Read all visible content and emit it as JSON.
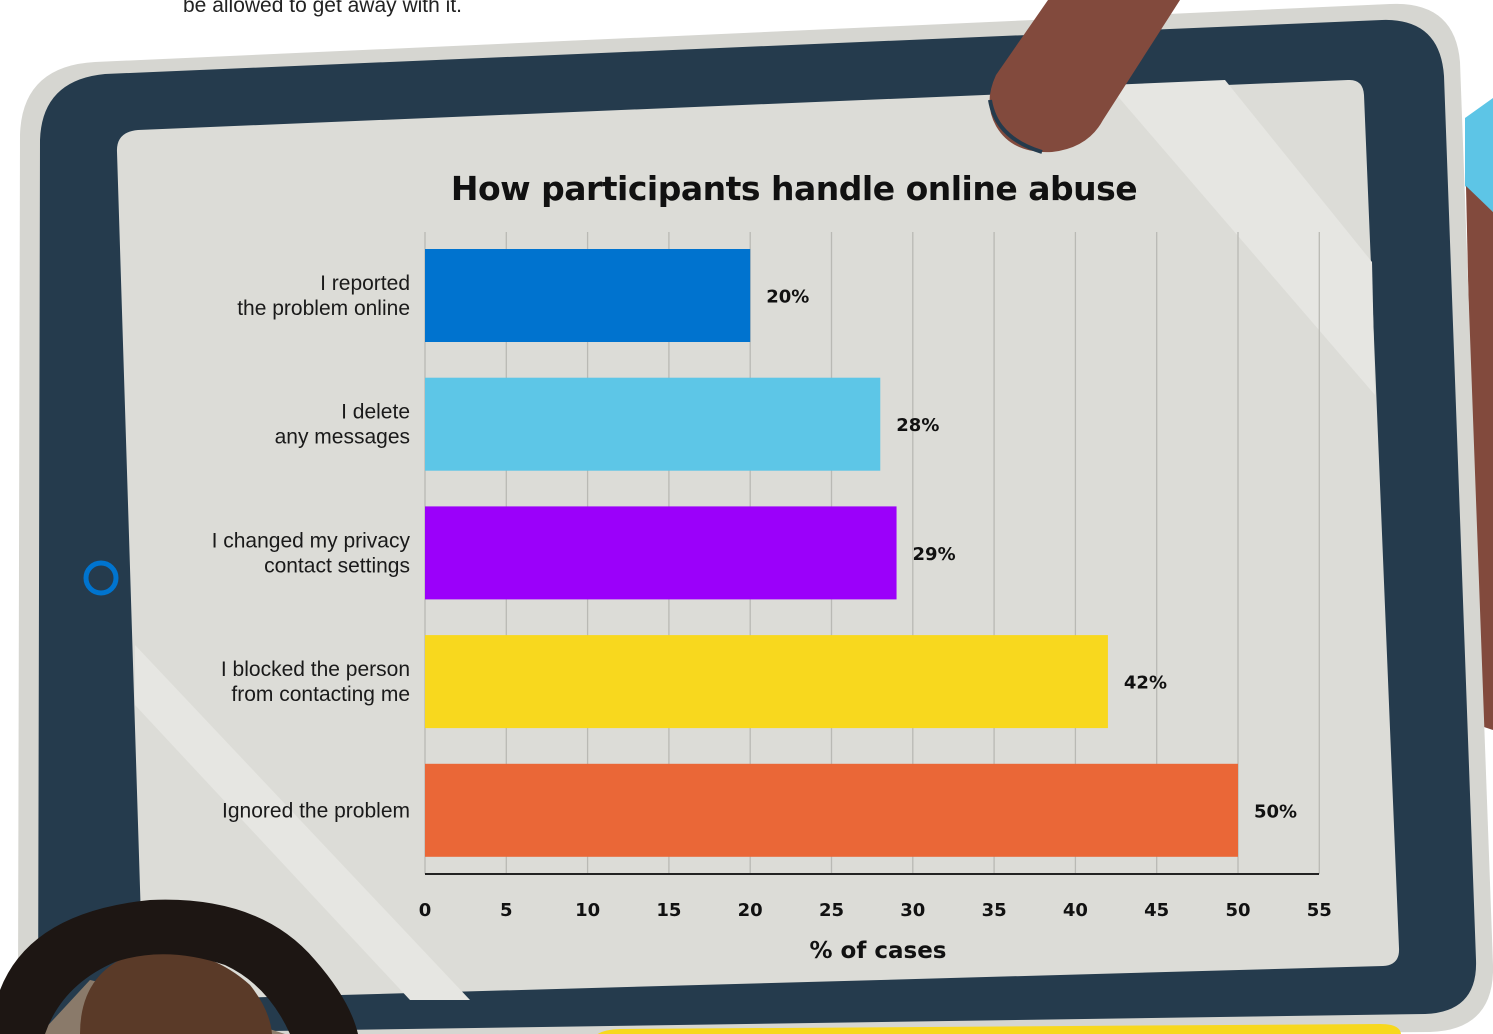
{
  "intro": {
    "text": "be allowed to get away with it."
  },
  "colors": {
    "tablet_frame": "#253b4d",
    "tablet_outer": "#d6d6d1",
    "screen": "#dcdcd7",
    "stylus": "#824a3d",
    "accent_cyan": "#5dc5e6",
    "home_button": "#0074cf",
    "caption_bar": "#f7d81e",
    "gridline": "#b9b9b4"
  },
  "chart_data": {
    "type": "bar",
    "orientation": "horizontal",
    "title": "How participants handle online abuse",
    "xlabel": "% of cases",
    "ylabel": "",
    "xlim": [
      0,
      55
    ],
    "xticks": [
      "0",
      "5",
      "10",
      "15",
      "20",
      "25",
      "30",
      "35",
      "40",
      "45",
      "50",
      "55"
    ],
    "grid": true,
    "categories": [
      [
        "I reported",
        "the problem online"
      ],
      [
        "I delete",
        "any messages"
      ],
      [
        "I changed my privacy",
        "contact settings"
      ],
      [
        "I blocked the person",
        "from contacting me"
      ],
      [
        "Ignored the problem"
      ]
    ],
    "values": [
      20,
      28,
      29,
      42,
      50
    ],
    "value_labels": [
      "20%",
      "28%",
      "29%",
      "42%",
      "50%"
    ],
    "bar_colors": [
      "#0073cf",
      "#5dc6e7",
      "#9b00fa",
      "#f8d81e",
      "#ea6737"
    ]
  }
}
